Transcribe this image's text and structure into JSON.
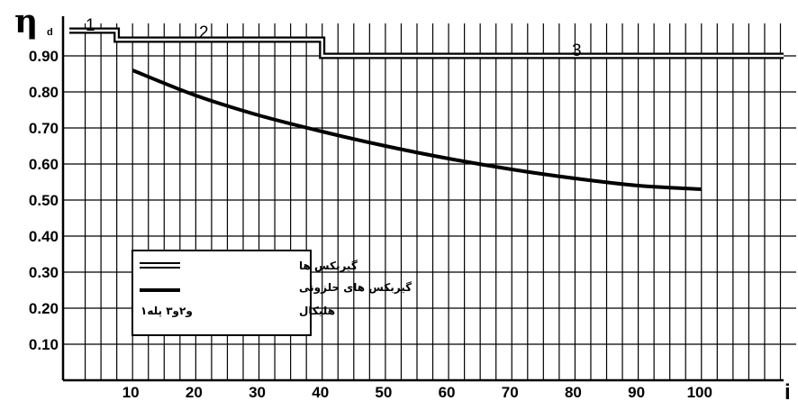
{
  "chart_data": {
    "type": "line",
    "xlabel": "i",
    "ylabel": "η",
    "ylabel_sub": "d",
    "xlim": [
      -1,
      113
    ],
    "ylim": [
      0,
      0.99
    ],
    "x_ticks": [
      10,
      20,
      30,
      40,
      50,
      60,
      70,
      80,
      90,
      100
    ],
    "x_tick_labels": [
      "10",
      "20",
      "30",
      "40",
      "50",
      "60",
      "70",
      "80",
      "90",
      "100"
    ],
    "y_ticks": [
      0.1,
      0.2,
      0.3,
      0.4,
      0.5,
      0.6,
      0.7,
      0.8,
      0.9
    ],
    "y_tick_labels": [
      "0.10",
      "0.20",
      "0.30",
      "0.40",
      "0.50",
      "0.60",
      "0.70",
      "0.80",
      "0.90"
    ],
    "grid": true,
    "series": [
      {
        "name": "گیربکس ها",
        "style": "double",
        "x": [
          0,
          7.5,
          7.5,
          40,
          40,
          113
        ],
        "y": [
          0.97,
          0.97,
          0.945,
          0.945,
          0.9,
          0.9
        ]
      },
      {
        "name": "گیربکس های حلزونی",
        "style": "thick",
        "x": [
          10,
          20,
          30,
          40,
          50,
          60,
          70,
          80,
          90,
          100
        ],
        "y": [
          0.86,
          0.79,
          0.735,
          0.69,
          0.65,
          0.615,
          0.585,
          0.56,
          0.54,
          0.53
        ]
      }
    ],
    "step_labels": [
      "1",
      "2",
      "3"
    ],
    "legend": {
      "position": "lower-left",
      "entries": [
        "گیربکس ها",
        "گیربکس های حلزونی"
      ],
      "footer_right": "هلیکال",
      "footer_left": "۱و۲و۳ پله"
    }
  }
}
